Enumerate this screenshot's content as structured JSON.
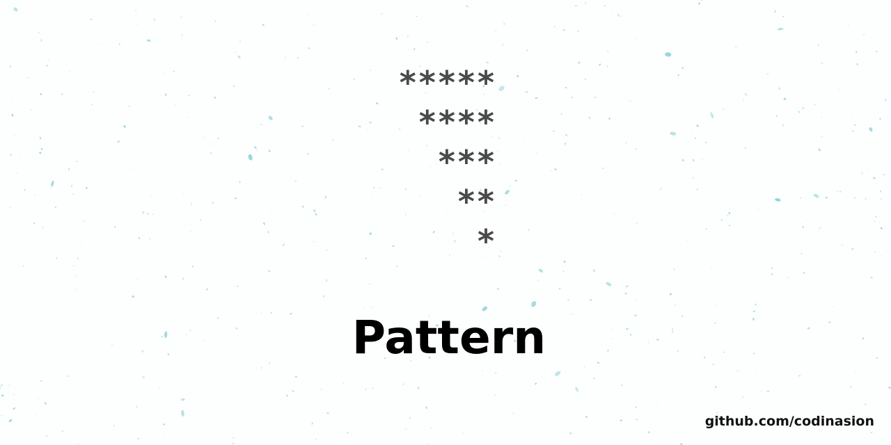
{
  "pattern": {
    "rows": [
      "*****",
      "****",
      "***",
      "**",
      "*"
    ]
  },
  "title": "Pattern",
  "credit": "github.com/codinasion",
  "colors": {
    "background": "#fdfefe",
    "speckle": "#8fd3d8",
    "stars": "#4a4a4a",
    "title": "#000000"
  }
}
